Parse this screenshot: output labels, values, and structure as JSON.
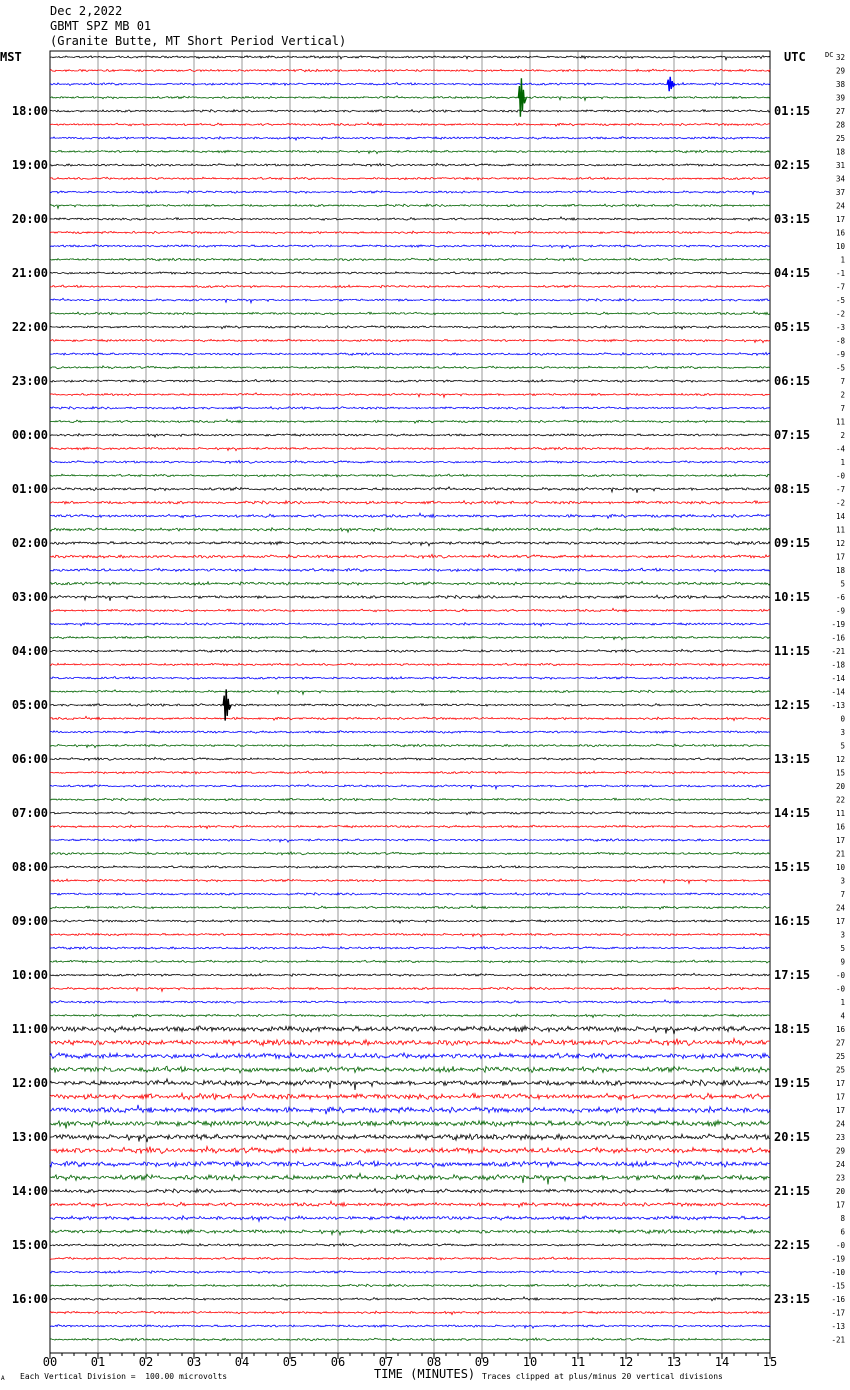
{
  "header": {
    "date": "Dec 2,2022",
    "station": "GBMT SPZ MB 01",
    "location": "(Granite Butte, MT Short Period Vertical)"
  },
  "labels": {
    "left_tz": "MST",
    "right_tz": "UTC",
    "dc": "DC"
  },
  "footer": {
    "scale": "Each Vertical Division =  100.00 microvolts",
    "clip": "Traces clipped at plus/minus 20 vertical divisions",
    "corner_mark": "A"
  },
  "chart_data": {
    "type": "line",
    "xlabel": "TIME (MINUTES)",
    "xlim": [
      0,
      15
    ],
    "x_ticks": [
      "00",
      "01",
      "02",
      "03",
      "04",
      "05",
      "06",
      "07",
      "08",
      "09",
      "10",
      "11",
      "12",
      "13",
      "14",
      "15"
    ],
    "trace_colors": [
      "#000000",
      "#ff0000",
      "#0000ff",
      "#006400"
    ],
    "grid": true,
    "left_hour_labels": [
      "18:00",
      "19:00",
      "20:00",
      "21:00",
      "22:00",
      "23:00",
      "00:00",
      "01:00",
      "02:00",
      "03:00",
      "04:00",
      "05:00",
      "06:00",
      "07:00",
      "08:00",
      "09:00",
      "10:00",
      "11:00",
      "12:00",
      "13:00",
      "14:00",
      "15:00",
      "16:00"
    ],
    "right_hour_labels": [
      "01:15",
      "02:15",
      "03:15",
      "04:15",
      "05:15",
      "06:15",
      "07:15",
      "08:15",
      "09:15",
      "10:15",
      "11:15",
      "12:15",
      "13:15",
      "14:15",
      "15:15",
      "16:15",
      "17:15",
      "18:15",
      "19:15",
      "20:15",
      "21:15",
      "22:15",
      "23:15"
    ],
    "dc_offsets": [
      "32",
      "29",
      "38",
      "39",
      "27",
      "28",
      "25",
      "18",
      "31",
      "34",
      "37",
      "24",
      "17",
      "16",
      "10",
      "1",
      "-1",
      "-7",
      "-5",
      "-2",
      "-3",
      "-8",
      "-9",
      "-5",
      "7",
      "2",
      "7",
      "11",
      "2",
      "-4",
      "1",
      "-0",
      "-7",
      "-2",
      "14",
      "11",
      "12",
      "17",
      "18",
      "5",
      "-6",
      "-9",
      "-19",
      "-16",
      "-21",
      "-18",
      "-14",
      "-14",
      "-13",
      "0",
      "3",
      "5",
      "12",
      "15",
      "20",
      "22",
      "11",
      "16",
      "17",
      "21",
      "10",
      "3",
      "7",
      "24",
      "17",
      "3",
      "5",
      "9",
      "-0",
      "-0",
      "1",
      "4",
      "16",
      "27",
      "25",
      "25",
      "17",
      "17",
      "17",
      "24",
      "23",
      "29",
      "24",
      "23",
      "20",
      "17",
      "8",
      "6",
      "-0",
      "-19",
      "-10",
      "-15",
      "-16",
      "-17",
      "-13",
      "-21"
    ],
    "events": [
      {
        "trace": 3,
        "minute": 9.8,
        "amplitude": 3.2
      },
      {
        "trace": 48,
        "minute": 3.65,
        "amplitude": 2.6
      },
      {
        "trace": 2,
        "minute": 12.9,
        "amplitude": 1.2
      }
    ]
  }
}
